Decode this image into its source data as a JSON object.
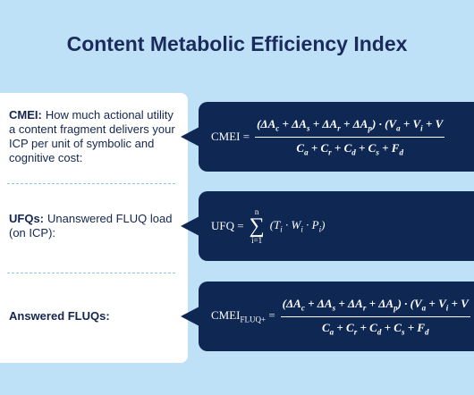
{
  "header": {
    "title": "Content Metabolic Efficiency Index"
  },
  "items": [
    {
      "term": "CMEI:",
      "description": "How much actional utility a content fragment delivers your ICP per unit of symbolic and cognitive cost:",
      "formula": {
        "lhs": [
          {
            "text": "CMEI ="
          }
        ],
        "numerator": [
          {
            "text": "(ΔA",
            "sub": "c"
          },
          {
            "text": " + ΔA",
            "sub": "s"
          },
          {
            "text": " + ΔA",
            "sub": "r"
          },
          {
            "text": " + ΔA",
            "sub": "p"
          },
          {
            "text": ") · (V",
            "sub": "a"
          },
          {
            "text": " + V",
            "sub": "i"
          },
          {
            "text": " + V"
          }
        ],
        "denominator": [
          {
            "text": "C",
            "sub": "a"
          },
          {
            "text": " + C",
            "sub": "r"
          },
          {
            "text": " + C",
            "sub": "d"
          },
          {
            "text": " + C",
            "sub": "s"
          },
          {
            "text": " + F",
            "sub": "d"
          }
        ]
      }
    },
    {
      "term": "UFQs:",
      "description": "Unanswered FLUQ load (on ICP):",
      "formula": {
        "lhs": [
          {
            "text": "UFQ ="
          }
        ],
        "sum_symbol": "∑",
        "sum_upper": "n",
        "sum_lower": "i=1",
        "body": [
          {
            "text": "(T",
            "sub": "i"
          },
          {
            "text": " · W",
            "sub": "i"
          },
          {
            "text": " · P",
            "sub": "i"
          },
          {
            "text": ")"
          }
        ]
      }
    },
    {
      "term": "Answered FLUQs:",
      "formula": {
        "lhs": [
          {
            "text": "CMEI",
            "sub": "FLUQ+"
          },
          {
            "text": " ="
          }
        ],
        "numerator": [
          {
            "text": "(ΔA",
            "sub": "c"
          },
          {
            "text": " + ΔA",
            "sub": "s"
          },
          {
            "text": " + ΔA",
            "sub": "r"
          },
          {
            "text": " + ΔA",
            "sub": "p"
          },
          {
            "text": ") · (V",
            "sub": "a"
          },
          {
            "text": " + V",
            "sub": "i"
          },
          {
            "text": " + V"
          }
        ],
        "denominator": [
          {
            "text": "C",
            "sub": "a"
          },
          {
            "text": " + C",
            "sub": "r"
          },
          {
            "text": " + C",
            "sub": "d"
          },
          {
            "text": " + C",
            "sub": "s"
          },
          {
            "text": " + F",
            "sub": "d"
          }
        ]
      }
    }
  ]
}
